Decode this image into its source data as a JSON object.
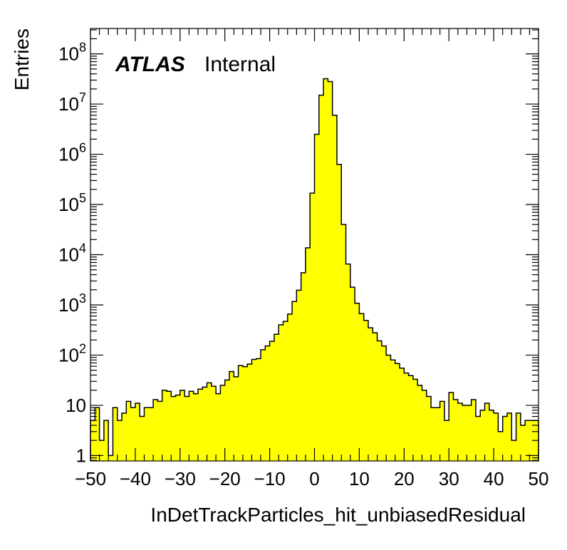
{
  "chart_data": {
    "type": "bar",
    "title": "",
    "xlabel": "InDetTrackParticles_hit_unbiasedResidual",
    "ylabel": "Entries",
    "xlim": [
      -50,
      50
    ],
    "ylim": [
      0.78,
      320000000.0
    ],
    "yscale": "log",
    "grid": false,
    "fill_color": "#ffff00",
    "line_color": "#000000",
    "x_ticks": [
      {
        "value": -50,
        "label": "−50"
      },
      {
        "value": -40,
        "label": "−40"
      },
      {
        "value": -30,
        "label": "−30"
      },
      {
        "value": -20,
        "label": "−20"
      },
      {
        "value": -10,
        "label": "−10"
      },
      {
        "value": 0,
        "label": "0"
      },
      {
        "value": 10,
        "label": "10"
      },
      {
        "value": 20,
        "label": "20"
      },
      {
        "value": 30,
        "label": "30"
      },
      {
        "value": 40,
        "label": "40"
      },
      {
        "value": 50,
        "label": "50"
      }
    ],
    "y_ticks": [
      {
        "value": 1,
        "base": "1",
        "exp": ""
      },
      {
        "value": 10,
        "base": "10",
        "exp": ""
      },
      {
        "value": 100,
        "base": "10",
        "exp": "2"
      },
      {
        "value": 1000,
        "base": "10",
        "exp": "3"
      },
      {
        "value": 10000,
        "base": "10",
        "exp": "4"
      },
      {
        "value": 100000,
        "base": "10",
        "exp": "5"
      },
      {
        "value": 1000000,
        "base": "10",
        "exp": "6"
      },
      {
        "value": 10000000,
        "base": "10",
        "exp": "7"
      },
      {
        "value": 100000000,
        "base": "10",
        "exp": "8"
      }
    ],
    "annotation": {
      "atlas": "ATLAS",
      "status": "Internal"
    },
    "bin_edges_range": [
      -50,
      50
    ],
    "bin_count": 100,
    "values": [
      5,
      9,
      2,
      5,
      1,
      9,
      5,
      7,
      12,
      9,
      11,
      6,
      9,
      9,
      13,
      12,
      20,
      19,
      15,
      16,
      20,
      15,
      19,
      17,
      21,
      23,
      28,
      24,
      17,
      25,
      32,
      47,
      37,
      62,
      59,
      66,
      82,
      85,
      128,
      152,
      188,
      260,
      400,
      470,
      655,
      1165,
      1963,
      4365,
      13700,
      168000,
      2500000,
      15000000,
      32000000,
      28000000,
      6000000,
      630000,
      40000,
      6500,
      2250,
      1080,
      670,
      490,
      350,
      278,
      192,
      152,
      100,
      80,
      68,
      55,
      44,
      39,
      33,
      25,
      20,
      15,
      9,
      9,
      12,
      5,
      18,
      13,
      11,
      10,
      10,
      13,
      6,
      8,
      11,
      8,
      7,
      3,
      6,
      7,
      2,
      7,
      4,
      5,
      5,
      5
    ]
  }
}
